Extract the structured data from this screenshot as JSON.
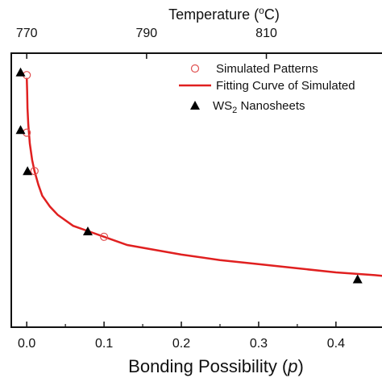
{
  "chart_data": {
    "type": "scatter",
    "title": "",
    "xlabel": "Bonding Possibility (",
    "xlabel_var": "p",
    "xlabel_close": ")",
    "top_xlabel_prefix": "Temperature (",
    "top_xlabel_sup": "o",
    "top_xlabel_suffix": "C)",
    "ylabel": "",
    "xlim": [
      -0.02,
      0.47
    ],
    "ylim": [
      0,
      1
    ],
    "x_ticks": [
      "0.0",
      "0.1",
      "0.2",
      "0.3",
      "0.4"
    ],
    "x_tick_values": [
      0.0,
      0.1,
      0.2,
      0.3,
      0.4
    ],
    "top_ticks": [
      "770",
      "790",
      "810"
    ],
    "top_tick_values": [
      0.0,
      0.155,
      0.31
    ],
    "legend_position": "top-right",
    "series": [
      {
        "name": "Simulated Patterns",
        "kind": "open-circle",
        "color": "#e05050",
        "x": [
          0.0,
          0.0,
          0.01,
          0.1
        ],
        "y": [
          0.92,
          0.71,
          0.57,
          0.33
        ]
      },
      {
        "name": "Fitting Curve of Simulated",
        "kind": "line",
        "color": "#e02020",
        "x": [
          0.0,
          0.0005,
          0.001,
          0.002,
          0.004,
          0.007,
          0.01,
          0.015,
          0.02,
          0.03,
          0.04,
          0.06,
          0.08,
          0.1,
          0.13,
          0.16,
          0.2,
          0.25,
          0.3,
          0.35,
          0.4,
          0.45,
          0.47
        ],
        "y": [
          0.91,
          0.86,
          0.8,
          0.74,
          0.67,
          0.61,
          0.57,
          0.52,
          0.48,
          0.44,
          0.41,
          0.37,
          0.35,
          0.33,
          0.3,
          0.285,
          0.265,
          0.245,
          0.23,
          0.215,
          0.2,
          0.19,
          0.185
        ]
      },
      {
        "name": "WS",
        "name_sub": "2",
        "name_suffix": " Nanosheets",
        "kind": "filled-triangle",
        "color": "#000000",
        "x": [
          -0.008,
          -0.008,
          0.001,
          0.079,
          0.428
        ],
        "y": [
          0.93,
          0.72,
          0.57,
          0.35,
          0.175
        ]
      }
    ]
  }
}
